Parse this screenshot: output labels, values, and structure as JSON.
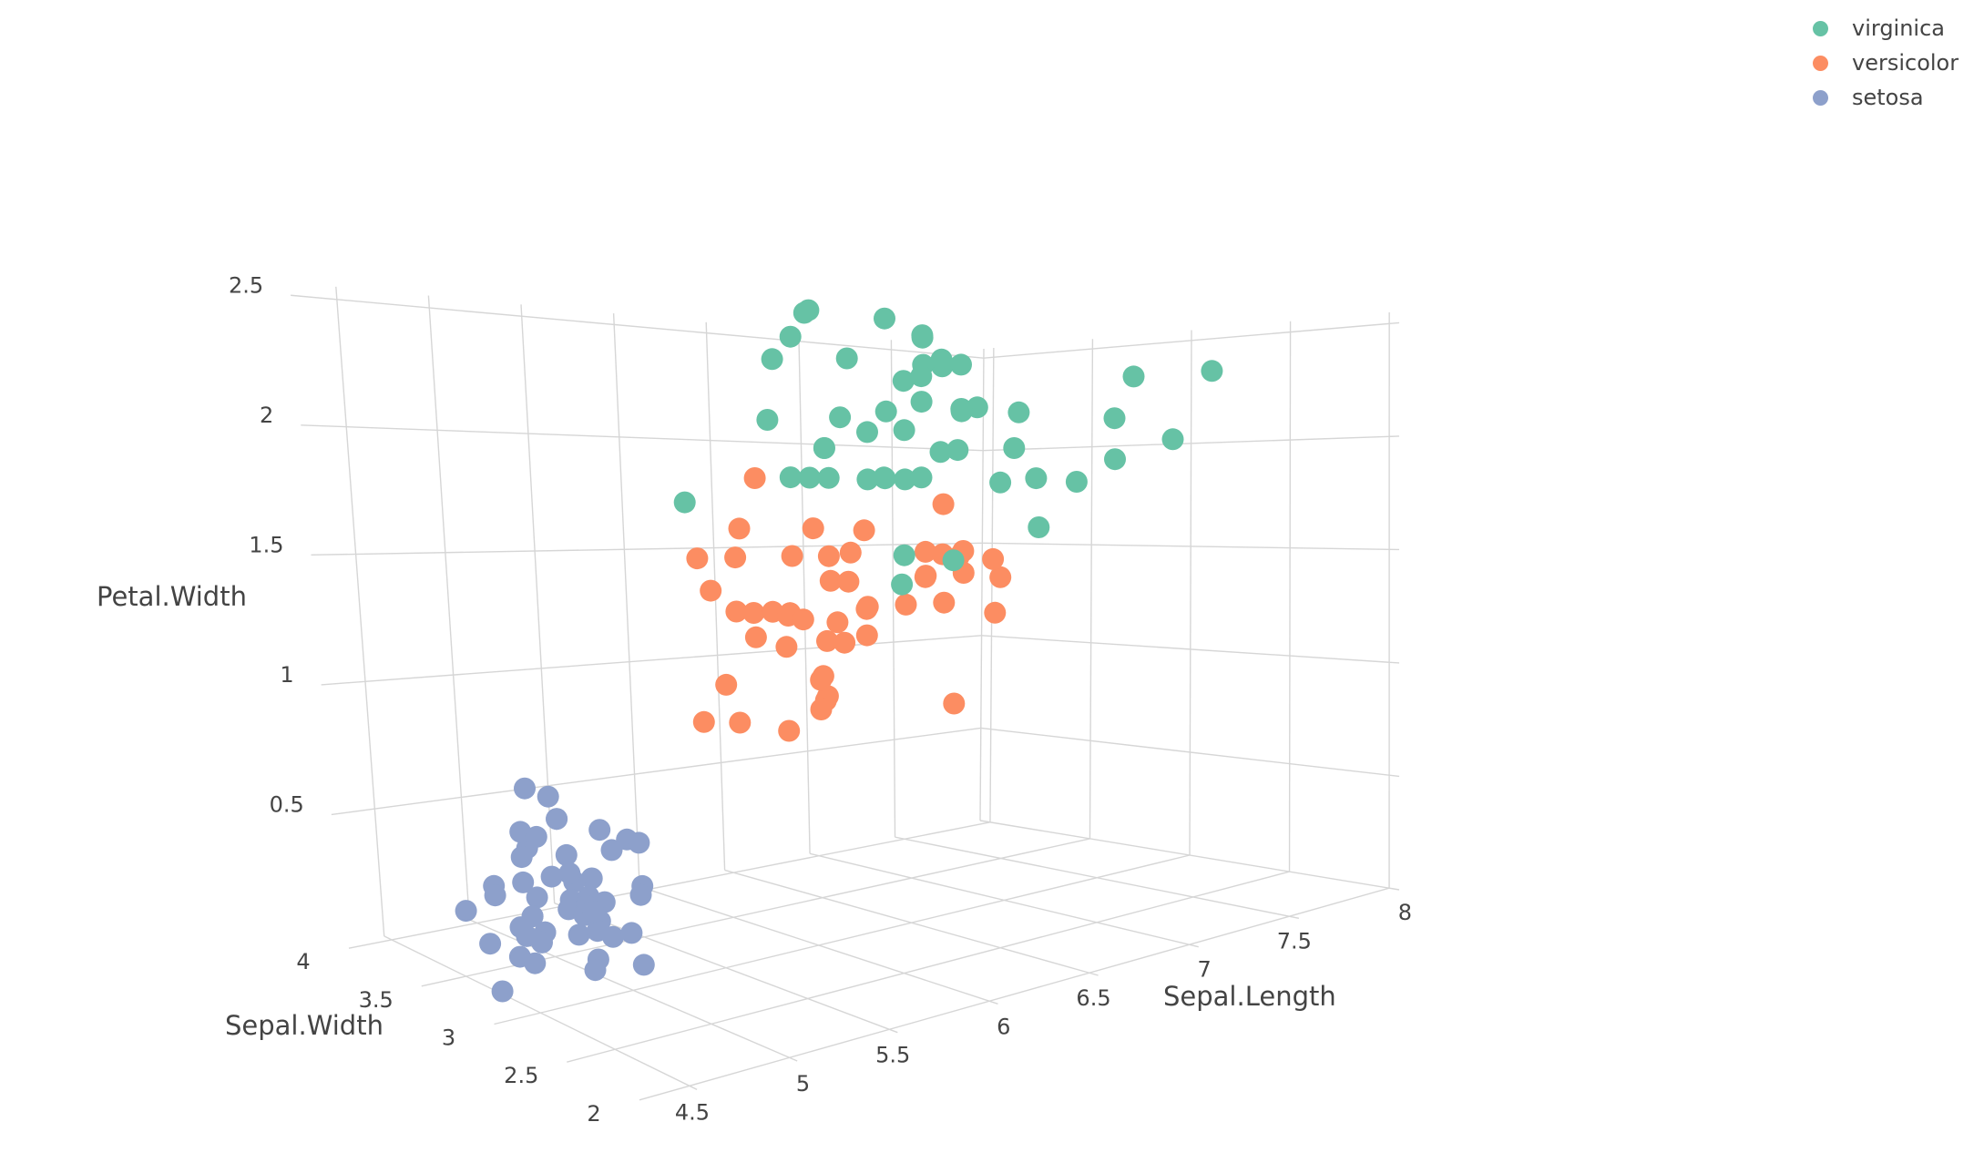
{
  "chart_data": {
    "type": "scatter",
    "dimensions": "3d",
    "axes": {
      "x": {
        "label": "Sepal.Length",
        "ticks": [
          4.5,
          5,
          5.5,
          6,
          6.5,
          7,
          7.5,
          8
        ]
      },
      "y": {
        "label": "Sepal.Width",
        "ticks": [
          2,
          2.5,
          3,
          3.5,
          4
        ]
      },
      "z": {
        "label": "Petal.Width",
        "ticks": [
          0.5,
          1,
          1.5,
          2,
          2.5
        ]
      }
    },
    "legend_position": "top-right",
    "series": [
      {
        "name": "virginica",
        "color": "#66c2a5",
        "points": [
          [
            6.3,
            3.3,
            2.5
          ],
          [
            5.8,
            2.7,
            1.9
          ],
          [
            7.1,
            3.0,
            2.1
          ],
          [
            6.3,
            2.9,
            1.8
          ],
          [
            6.5,
            3.0,
            2.2
          ],
          [
            7.6,
            3.0,
            2.1
          ],
          [
            4.9,
            2.5,
            1.7
          ],
          [
            7.3,
            2.9,
            1.8
          ],
          [
            6.7,
            2.5,
            1.8
          ],
          [
            7.2,
            3.6,
            2.5
          ],
          [
            6.5,
            3.2,
            2.0
          ],
          [
            6.4,
            2.7,
            1.9
          ],
          [
            6.8,
            3.0,
            2.1
          ],
          [
            5.7,
            2.5,
            2.0
          ],
          [
            5.8,
            2.8,
            2.4
          ],
          [
            6.4,
            3.2,
            2.3
          ],
          [
            6.5,
            3.0,
            1.8
          ],
          [
            7.7,
            3.8,
            2.2
          ],
          [
            7.7,
            2.6,
            2.3
          ],
          [
            6.0,
            2.2,
            1.5
          ],
          [
            6.9,
            3.2,
            2.3
          ],
          [
            5.6,
            2.8,
            2.0
          ],
          [
            7.7,
            2.8,
            2.0
          ],
          [
            6.3,
            2.7,
            1.8
          ],
          [
            6.7,
            3.3,
            2.1
          ],
          [
            7.2,
            3.2,
            1.8
          ],
          [
            6.2,
            2.8,
            1.8
          ],
          [
            6.1,
            3.0,
            1.8
          ],
          [
            6.4,
            2.8,
            2.1
          ],
          [
            7.2,
            3.0,
            1.6
          ],
          [
            7.4,
            2.8,
            1.9
          ],
          [
            7.9,
            3.8,
            2.0
          ],
          [
            6.4,
            2.8,
            2.2
          ],
          [
            6.3,
            2.8,
            1.5
          ],
          [
            6.1,
            2.6,
            1.4
          ],
          [
            7.7,
            3.0,
            2.3
          ],
          [
            6.3,
            3.4,
            2.4
          ],
          [
            6.4,
            3.1,
            1.8
          ],
          [
            6.0,
            3.0,
            1.8
          ],
          [
            6.9,
            3.1,
            2.1
          ],
          [
            6.7,
            3.1,
            2.4
          ],
          [
            6.9,
            3.1,
            2.3
          ],
          [
            5.8,
            2.7,
            1.9
          ],
          [
            6.8,
            3.2,
            2.3
          ],
          [
            6.7,
            3.3,
            2.5
          ],
          [
            6.7,
            3.0,
            2.3
          ],
          [
            6.3,
            2.5,
            1.9
          ],
          [
            6.5,
            3.0,
            2.0
          ],
          [
            6.2,
            3.4,
            2.3
          ],
          [
            5.9,
            3.0,
            1.8
          ]
        ]
      },
      {
        "name": "versicolor",
        "color": "#fc8d62",
        "points": [
          [
            7.0,
            3.2,
            1.4
          ],
          [
            6.4,
            3.2,
            1.5
          ],
          [
            6.9,
            3.1,
            1.5
          ],
          [
            5.5,
            2.3,
            1.3
          ],
          [
            6.5,
            2.8,
            1.5
          ],
          [
            5.7,
            2.8,
            1.3
          ],
          [
            6.3,
            3.3,
            1.6
          ],
          [
            4.9,
            2.4,
            1.0
          ],
          [
            6.6,
            2.9,
            1.3
          ],
          [
            5.2,
            2.7,
            1.4
          ],
          [
            5.0,
            2.0,
            1.0
          ],
          [
            5.9,
            3.0,
            1.5
          ],
          [
            6.0,
            2.2,
            1.0
          ],
          [
            6.1,
            2.9,
            1.4
          ],
          [
            5.6,
            2.9,
            1.3
          ],
          [
            6.7,
            3.1,
            1.4
          ],
          [
            5.6,
            3.0,
            1.5
          ],
          [
            5.8,
            2.7,
            1.0
          ],
          [
            6.2,
            2.2,
            1.5
          ],
          [
            5.6,
            2.5,
            1.1
          ],
          [
            5.9,
            3.2,
            1.8
          ],
          [
            6.1,
            2.8,
            1.3
          ],
          [
            6.3,
            2.5,
            1.5
          ],
          [
            6.1,
            2.8,
            1.2
          ],
          [
            6.4,
            2.9,
            1.3
          ],
          [
            6.6,
            3.0,
            1.4
          ],
          [
            6.8,
            2.8,
            1.4
          ],
          [
            6.7,
            3.0,
            1.7
          ],
          [
            6.0,
            2.9,
            1.5
          ],
          [
            5.7,
            2.6,
            1.0
          ],
          [
            5.5,
            2.4,
            1.1
          ],
          [
            5.5,
            2.4,
            1.0
          ],
          [
            5.8,
            2.7,
            1.2
          ],
          [
            6.0,
            2.7,
            1.6
          ],
          [
            5.4,
            3.0,
            1.5
          ],
          [
            6.0,
            3.4,
            1.6
          ],
          [
            6.7,
            3.1,
            1.5
          ],
          [
            6.3,
            2.3,
            1.3
          ],
          [
            5.6,
            3.0,
            1.3
          ],
          [
            5.5,
            2.5,
            1.3
          ],
          [
            5.5,
            2.6,
            1.2
          ],
          [
            6.1,
            3.0,
            1.4
          ],
          [
            5.8,
            2.6,
            1.2
          ],
          [
            5.0,
            2.3,
            1.0
          ],
          [
            5.6,
            2.7,
            1.3
          ],
          [
            5.7,
            3.0,
            1.2
          ],
          [
            5.7,
            2.9,
            1.3
          ],
          [
            6.2,
            2.9,
            1.3
          ],
          [
            5.1,
            2.5,
            1.1
          ],
          [
            5.7,
            2.8,
            1.3
          ]
        ]
      },
      {
        "name": "setosa",
        "color": "#8da0cb",
        "points": [
          [
            5.1,
            3.5,
            0.2
          ],
          [
            4.9,
            3.0,
            0.2
          ],
          [
            4.7,
            3.2,
            0.2
          ],
          [
            4.6,
            3.1,
            0.2
          ],
          [
            5.0,
            3.6,
            0.2
          ],
          [
            5.4,
            3.9,
            0.4
          ],
          [
            4.6,
            3.4,
            0.3
          ],
          [
            5.0,
            3.4,
            0.2
          ],
          [
            4.4,
            2.9,
            0.2
          ],
          [
            4.9,
            3.1,
            0.1
          ],
          [
            5.4,
            3.7,
            0.2
          ],
          [
            4.8,
            3.4,
            0.2
          ],
          [
            4.8,
            3.0,
            0.1
          ],
          [
            4.3,
            3.0,
            0.1
          ],
          [
            5.8,
            4.0,
            0.2
          ],
          [
            5.7,
            4.4,
            0.4
          ],
          [
            5.4,
            3.9,
            0.4
          ],
          [
            5.1,
            3.5,
            0.3
          ],
          [
            5.7,
            3.8,
            0.3
          ],
          [
            5.1,
            3.8,
            0.3
          ],
          [
            5.4,
            3.4,
            0.2
          ],
          [
            5.1,
            3.7,
            0.4
          ],
          [
            4.6,
            3.6,
            0.2
          ],
          [
            5.1,
            3.3,
            0.5
          ],
          [
            4.8,
            3.4,
            0.2
          ],
          [
            5.0,
            3.0,
            0.2
          ],
          [
            5.0,
            3.4,
            0.4
          ],
          [
            5.2,
            3.5,
            0.2
          ],
          [
            5.2,
            3.4,
            0.2
          ],
          [
            4.7,
            3.2,
            0.2
          ],
          [
            4.8,
            3.1,
            0.2
          ],
          [
            5.4,
            3.4,
            0.4
          ],
          [
            5.2,
            4.1,
            0.1
          ],
          [
            5.5,
            4.2,
            0.2
          ],
          [
            4.9,
            3.1,
            0.2
          ],
          [
            5.0,
            3.2,
            0.2
          ],
          [
            5.5,
            3.5,
            0.2
          ],
          [
            4.9,
            3.6,
            0.1
          ],
          [
            4.4,
            3.0,
            0.2
          ],
          [
            5.1,
            3.4,
            0.2
          ],
          [
            5.0,
            3.5,
            0.3
          ],
          [
            4.5,
            2.3,
            0.3
          ],
          [
            4.4,
            3.2,
            0.2
          ],
          [
            5.0,
            3.5,
            0.6
          ],
          [
            5.1,
            3.8,
            0.4
          ],
          [
            4.8,
            3.0,
            0.3
          ],
          [
            5.1,
            3.8,
            0.2
          ],
          [
            4.6,
            3.2,
            0.2
          ],
          [
            5.3,
            3.7,
            0.2
          ],
          [
            5.0,
            3.3,
            0.2
          ]
        ]
      }
    ]
  }
}
